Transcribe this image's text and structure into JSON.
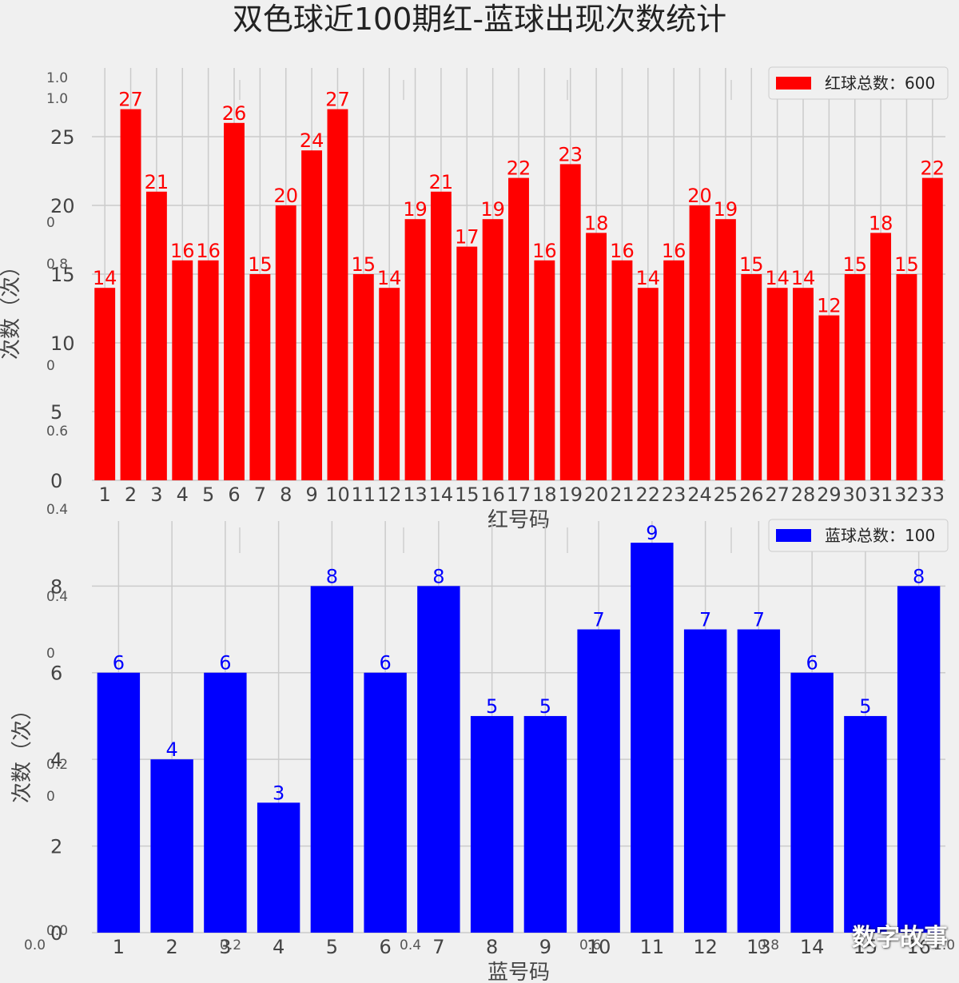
{
  "title": "双色球近100期红-蓝球出现次数统计",
  "watermark": "数字故事",
  "chart_data": [
    {
      "type": "bar",
      "color": "#ff0000",
      "xlabel": "红号码",
      "ylabel": "次数（次）",
      "legend": "红球总数：600",
      "legend_position": "top-right",
      "grid": true,
      "ylim": [
        0,
        30
      ],
      "yticks": [
        0,
        5,
        10,
        15,
        20,
        25
      ],
      "categories": [
        "1",
        "2",
        "3",
        "4",
        "5",
        "6",
        "7",
        "8",
        "9",
        "10",
        "11",
        "12",
        "13",
        "14",
        "15",
        "16",
        "17",
        "18",
        "19",
        "20",
        "21",
        "22",
        "23",
        "24",
        "25",
        "26",
        "27",
        "28",
        "29",
        "30",
        "31",
        "32",
        "33"
      ],
      "values": [
        14,
        27,
        21,
        16,
        16,
        26,
        15,
        20,
        24,
        27,
        15,
        14,
        19,
        21,
        17,
        19,
        22,
        16,
        23,
        18,
        16,
        14,
        16,
        20,
        19,
        15,
        14,
        14,
        12,
        15,
        18,
        15,
        22
      ]
    },
    {
      "type": "bar",
      "color": "#0000ff",
      "xlabel": "蓝号码",
      "ylabel": "次数（次）",
      "legend": "蓝球总数：100",
      "legend_position": "top-right",
      "grid": true,
      "ylim": [
        0,
        9.5
      ],
      "yticks": [
        0,
        2,
        4,
        6,
        8
      ],
      "categories": [
        "1",
        "2",
        "3",
        "4",
        "5",
        "6",
        "7",
        "8",
        "9",
        "10",
        "11",
        "12",
        "13",
        "14",
        "15",
        "16"
      ],
      "values": [
        6,
        4,
        6,
        3,
        8,
        6,
        8,
        5,
        5,
        7,
        9,
        7,
        7,
        6,
        5,
        8
      ]
    }
  ],
  "ghost_axis": {
    "left_labels": [
      "1.0",
      "1.0",
      "0",
      "0.8",
      "0",
      "0.6",
      "0.4",
      "0.4",
      "0",
      "0.2",
      "0",
      "0.0"
    ],
    "bottom_labels": [
      "0.0",
      "0.2",
      "0.4",
      "0.6",
      "0.8",
      "1.0"
    ]
  }
}
